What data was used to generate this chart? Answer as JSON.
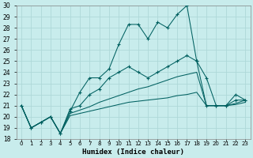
{
  "xlabel": "Humidex (Indice chaleur)",
  "x_labels": [
    "0",
    "1",
    "2",
    "3",
    "4",
    "5",
    "6",
    "7",
    "8",
    "9",
    "10",
    "11",
    "12",
    "13",
    "14",
    "15",
    "16",
    "17",
    "18",
    "19",
    "20",
    "21",
    "22",
    "23"
  ],
  "ylim": [
    18,
    30
  ],
  "yticks": [
    18,
    19,
    20,
    21,
    22,
    23,
    24,
    25,
    26,
    27,
    28,
    29,
    30
  ],
  "background_color": "#c8ecec",
  "grid_color": "#aed8d8",
  "line_color": "#006060",
  "series_main": [
    21.0,
    19.0,
    19.5,
    20.0,
    18.5,
    20.5,
    22.2,
    23.5,
    23.5,
    24.3,
    26.5,
    28.3,
    28.3,
    27.0,
    28.5,
    28.0,
    29.2,
    30.0,
    25.0,
    23.5,
    21.0,
    21.0,
    22.0,
    21.5
  ],
  "series_second": [
    21.0,
    19.0,
    19.5,
    20.0,
    18.5,
    20.7,
    21.0,
    22.0,
    22.5,
    23.5,
    24.0,
    24.5,
    24.0,
    23.5,
    24.0,
    24.5,
    25.0,
    25.5,
    25.0,
    21.0,
    21.0,
    21.0,
    21.5,
    21.5
  ],
  "series_trend1": [
    21.0,
    19.0,
    19.5,
    20.0,
    18.5,
    20.3,
    20.6,
    20.9,
    21.3,
    21.6,
    21.9,
    22.2,
    22.5,
    22.7,
    23.0,
    23.3,
    23.6,
    23.8,
    24.0,
    21.0,
    21.0,
    21.0,
    21.2,
    21.5
  ],
  "series_trend2": [
    21.0,
    19.0,
    19.5,
    20.0,
    18.5,
    20.1,
    20.3,
    20.5,
    20.7,
    20.9,
    21.1,
    21.3,
    21.4,
    21.5,
    21.6,
    21.7,
    21.9,
    22.0,
    22.2,
    21.0,
    21.0,
    21.0,
    21.1,
    21.3
  ]
}
